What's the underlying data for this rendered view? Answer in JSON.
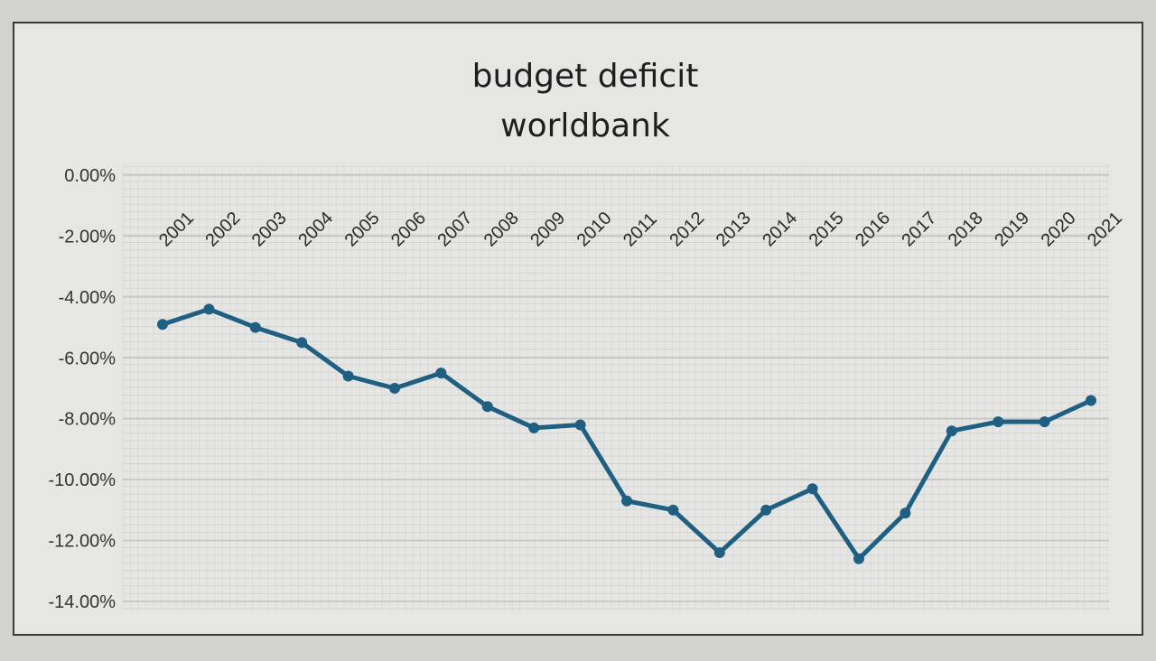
{
  "colors": {
    "line": "#1f5f82",
    "gridline": "#c4c4c4",
    "plot_background": "#e6e7e4"
  },
  "chart_data": {
    "type": "line",
    "title": "budget deficit",
    "subtitle": "worldbank",
    "xlabel": "",
    "ylabel": "",
    "ylim": [
      -14,
      0
    ],
    "y_tick_step": 2,
    "y_tick_labels": [
      "0.00%",
      "-2.00%",
      "-4.00%",
      "-6.00%",
      "-8.00%",
      "-10.00%",
      "-12.00%",
      "-14.00%"
    ],
    "grid": true,
    "legend": "none",
    "categories": [
      "2001",
      "2002",
      "2003",
      "2004",
      "2005",
      "2006",
      "2007",
      "2008",
      "2009",
      "2010",
      "2011",
      "2012",
      "2013",
      "2014",
      "2015",
      "2016",
      "2017",
      "2018",
      "2019",
      "2020",
      "2021"
    ],
    "series": [
      {
        "values": [
          -4.9,
          -4.4,
          -5.0,
          -5.5,
          -6.6,
          -7.0,
          -6.5,
          -7.6,
          -8.3,
          -8.2,
          -10.7,
          -11.0,
          -12.4,
          -11.0,
          -10.3,
          -12.6,
          -11.1,
          -8.4,
          -8.1,
          -8.1,
          -7.4
        ]
      }
    ]
  }
}
